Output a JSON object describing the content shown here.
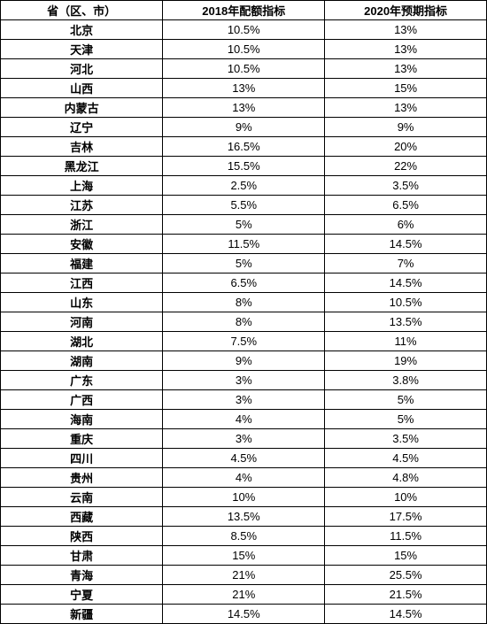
{
  "table": {
    "columns": [
      "省（区、市）",
      "2018年配额指标",
      "2020年预期指标"
    ],
    "rows": [
      [
        "北京",
        "10.5%",
        "13%"
      ],
      [
        "天津",
        "10.5%",
        "13%"
      ],
      [
        "河北",
        "10.5%",
        "13%"
      ],
      [
        "山西",
        "13%",
        "15%"
      ],
      [
        "内蒙古",
        "13%",
        "13%"
      ],
      [
        "辽宁",
        "9%",
        "9%"
      ],
      [
        "吉林",
        "16.5%",
        "20%"
      ],
      [
        "黑龙江",
        "15.5%",
        "22%"
      ],
      [
        "上海",
        "2.5%",
        "3.5%"
      ],
      [
        "江苏",
        "5.5%",
        "6.5%"
      ],
      [
        "浙江",
        "5%",
        "6%"
      ],
      [
        "安徽",
        "11.5%",
        "14.5%"
      ],
      [
        "福建",
        "5%",
        "7%"
      ],
      [
        "江西",
        "6.5%",
        "14.5%"
      ],
      [
        "山东",
        "8%",
        "10.5%"
      ],
      [
        "河南",
        "8%",
        "13.5%"
      ],
      [
        "湖北",
        "7.5%",
        "11%"
      ],
      [
        "湖南",
        "9%",
        "19%"
      ],
      [
        "广东",
        "3%",
        "3.8%"
      ],
      [
        "广西",
        "3%",
        "5%"
      ],
      [
        "海南",
        "4%",
        "5%"
      ],
      [
        "重庆",
        "3%",
        "3.5%"
      ],
      [
        "四川",
        "4.5%",
        "4.5%"
      ],
      [
        "贵州",
        "4%",
        "4.8%"
      ],
      [
        "云南",
        "10%",
        "10%"
      ],
      [
        "西藏",
        "13.5%",
        "17.5%"
      ],
      [
        "陕西",
        "8.5%",
        "11.5%"
      ],
      [
        "甘肃",
        "15%",
        "15%"
      ],
      [
        "青海",
        "21%",
        "25.5%"
      ],
      [
        "宁夏",
        "21%",
        "21.5%"
      ],
      [
        "新疆",
        "14.5%",
        "14.5%"
      ]
    ],
    "border_color": "#000000",
    "background_color": "#ffffff",
    "font_size": 13,
    "header_font_weight": "bold"
  }
}
